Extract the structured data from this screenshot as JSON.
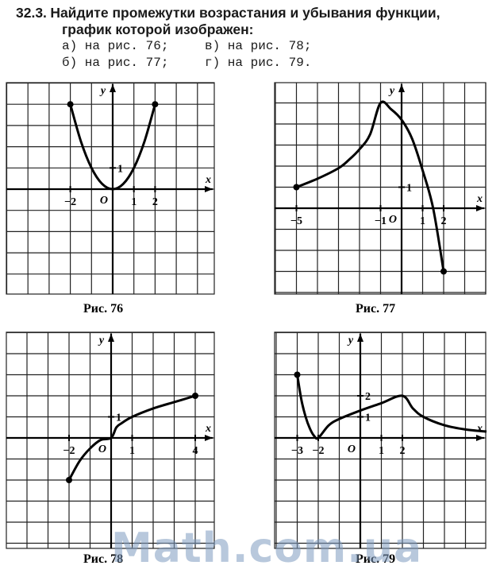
{
  "problem": {
    "number": "32.3.",
    "title_line1": "Найдите промежутки возрастания и убывания функции,",
    "title_line2": "график которой изображен:",
    "options": [
      [
        "а) на рис. 76;",
        "в) на рис. 78;"
      ],
      [
        "б) на рис. 77;",
        "г) на рис. 79."
      ]
    ]
  },
  "chart_data": [
    {
      "type": "line",
      "caption": "Рис. 76",
      "xlabel": "x",
      "ylabel": "y",
      "origin_label": "O",
      "x_ticks": [
        "−2",
        "1",
        "2"
      ],
      "y_ticks": [
        "1"
      ],
      "series": [
        {
          "x": [
            -2,
            -1.5,
            -1,
            -0.5,
            0,
            0.5,
            1,
            1.5,
            2
          ],
          "y": [
            4,
            2.25,
            1,
            0.25,
            0,
            0.25,
            1,
            2.25,
            4
          ]
        }
      ],
      "endpoints": [
        [
          -2,
          4
        ],
        [
          2,
          4
        ]
      ]
    },
    {
      "type": "line",
      "caption": "Рис. 77",
      "xlabel": "x",
      "ylabel": "y",
      "origin_label": "O",
      "x_ticks": [
        "−5",
        "−1",
        "1",
        "2"
      ],
      "y_ticks": [
        "1"
      ],
      "series": [
        {
          "x": [
            -5,
            -4,
            -3,
            -2.5,
            -2,
            -1.5,
            -1,
            -0.5,
            0,
            0.5,
            1,
            1.5,
            2
          ],
          "y": [
            1,
            1.4,
            1.9,
            2.3,
            2.8,
            3.5,
            5,
            4.7,
            4.2,
            3.3,
            1.8,
            0,
            -3
          ]
        }
      ],
      "endpoints": [
        [
          -5,
          1
        ],
        [
          2,
          -3
        ]
      ]
    },
    {
      "type": "line",
      "caption": "Рис. 78",
      "xlabel": "x",
      "ylabel": "y",
      "origin_label": "O",
      "x_ticks": [
        "−2",
        "1",
        "4"
      ],
      "y_ticks": [
        "1"
      ],
      "series": [
        {
          "x": [
            -2,
            -1.5,
            -1,
            -0.5,
            0,
            0.25,
            0.5,
            1,
            2,
            3,
            4
          ],
          "y": [
            -2,
            -1.1,
            -0.5,
            -0.1,
            0,
            0.5,
            0.7,
            1,
            1.4,
            1.7,
            2
          ]
        }
      ],
      "endpoints": [
        [
          -2,
          -2
        ],
        [
          4,
          2
        ]
      ]
    },
    {
      "type": "line",
      "caption": "Рис. 79",
      "xlabel": "x",
      "ylabel": "y",
      "origin_label": "O",
      "x_ticks": [
        "−3",
        "−2",
        "1",
        "2"
      ],
      "y_ticks": [
        "1",
        "2"
      ],
      "series": [
        {
          "x": [
            -3,
            -2.8,
            -2.6,
            -2.4,
            -2.2,
            -2,
            -1.5,
            -1,
            0,
            1,
            2,
            2.5,
            3,
            4,
            5,
            6
          ],
          "y": [
            3,
            1.8,
            1.0,
            0.45,
            0.1,
            0,
            0.6,
            0.9,
            1.3,
            1.65,
            2,
            1.4,
            1,
            0.6,
            0.4,
            0.3
          ]
        }
      ],
      "endpoints": [
        [
          -3,
          3
        ]
      ]
    }
  ],
  "watermark": "Math.com.ua"
}
